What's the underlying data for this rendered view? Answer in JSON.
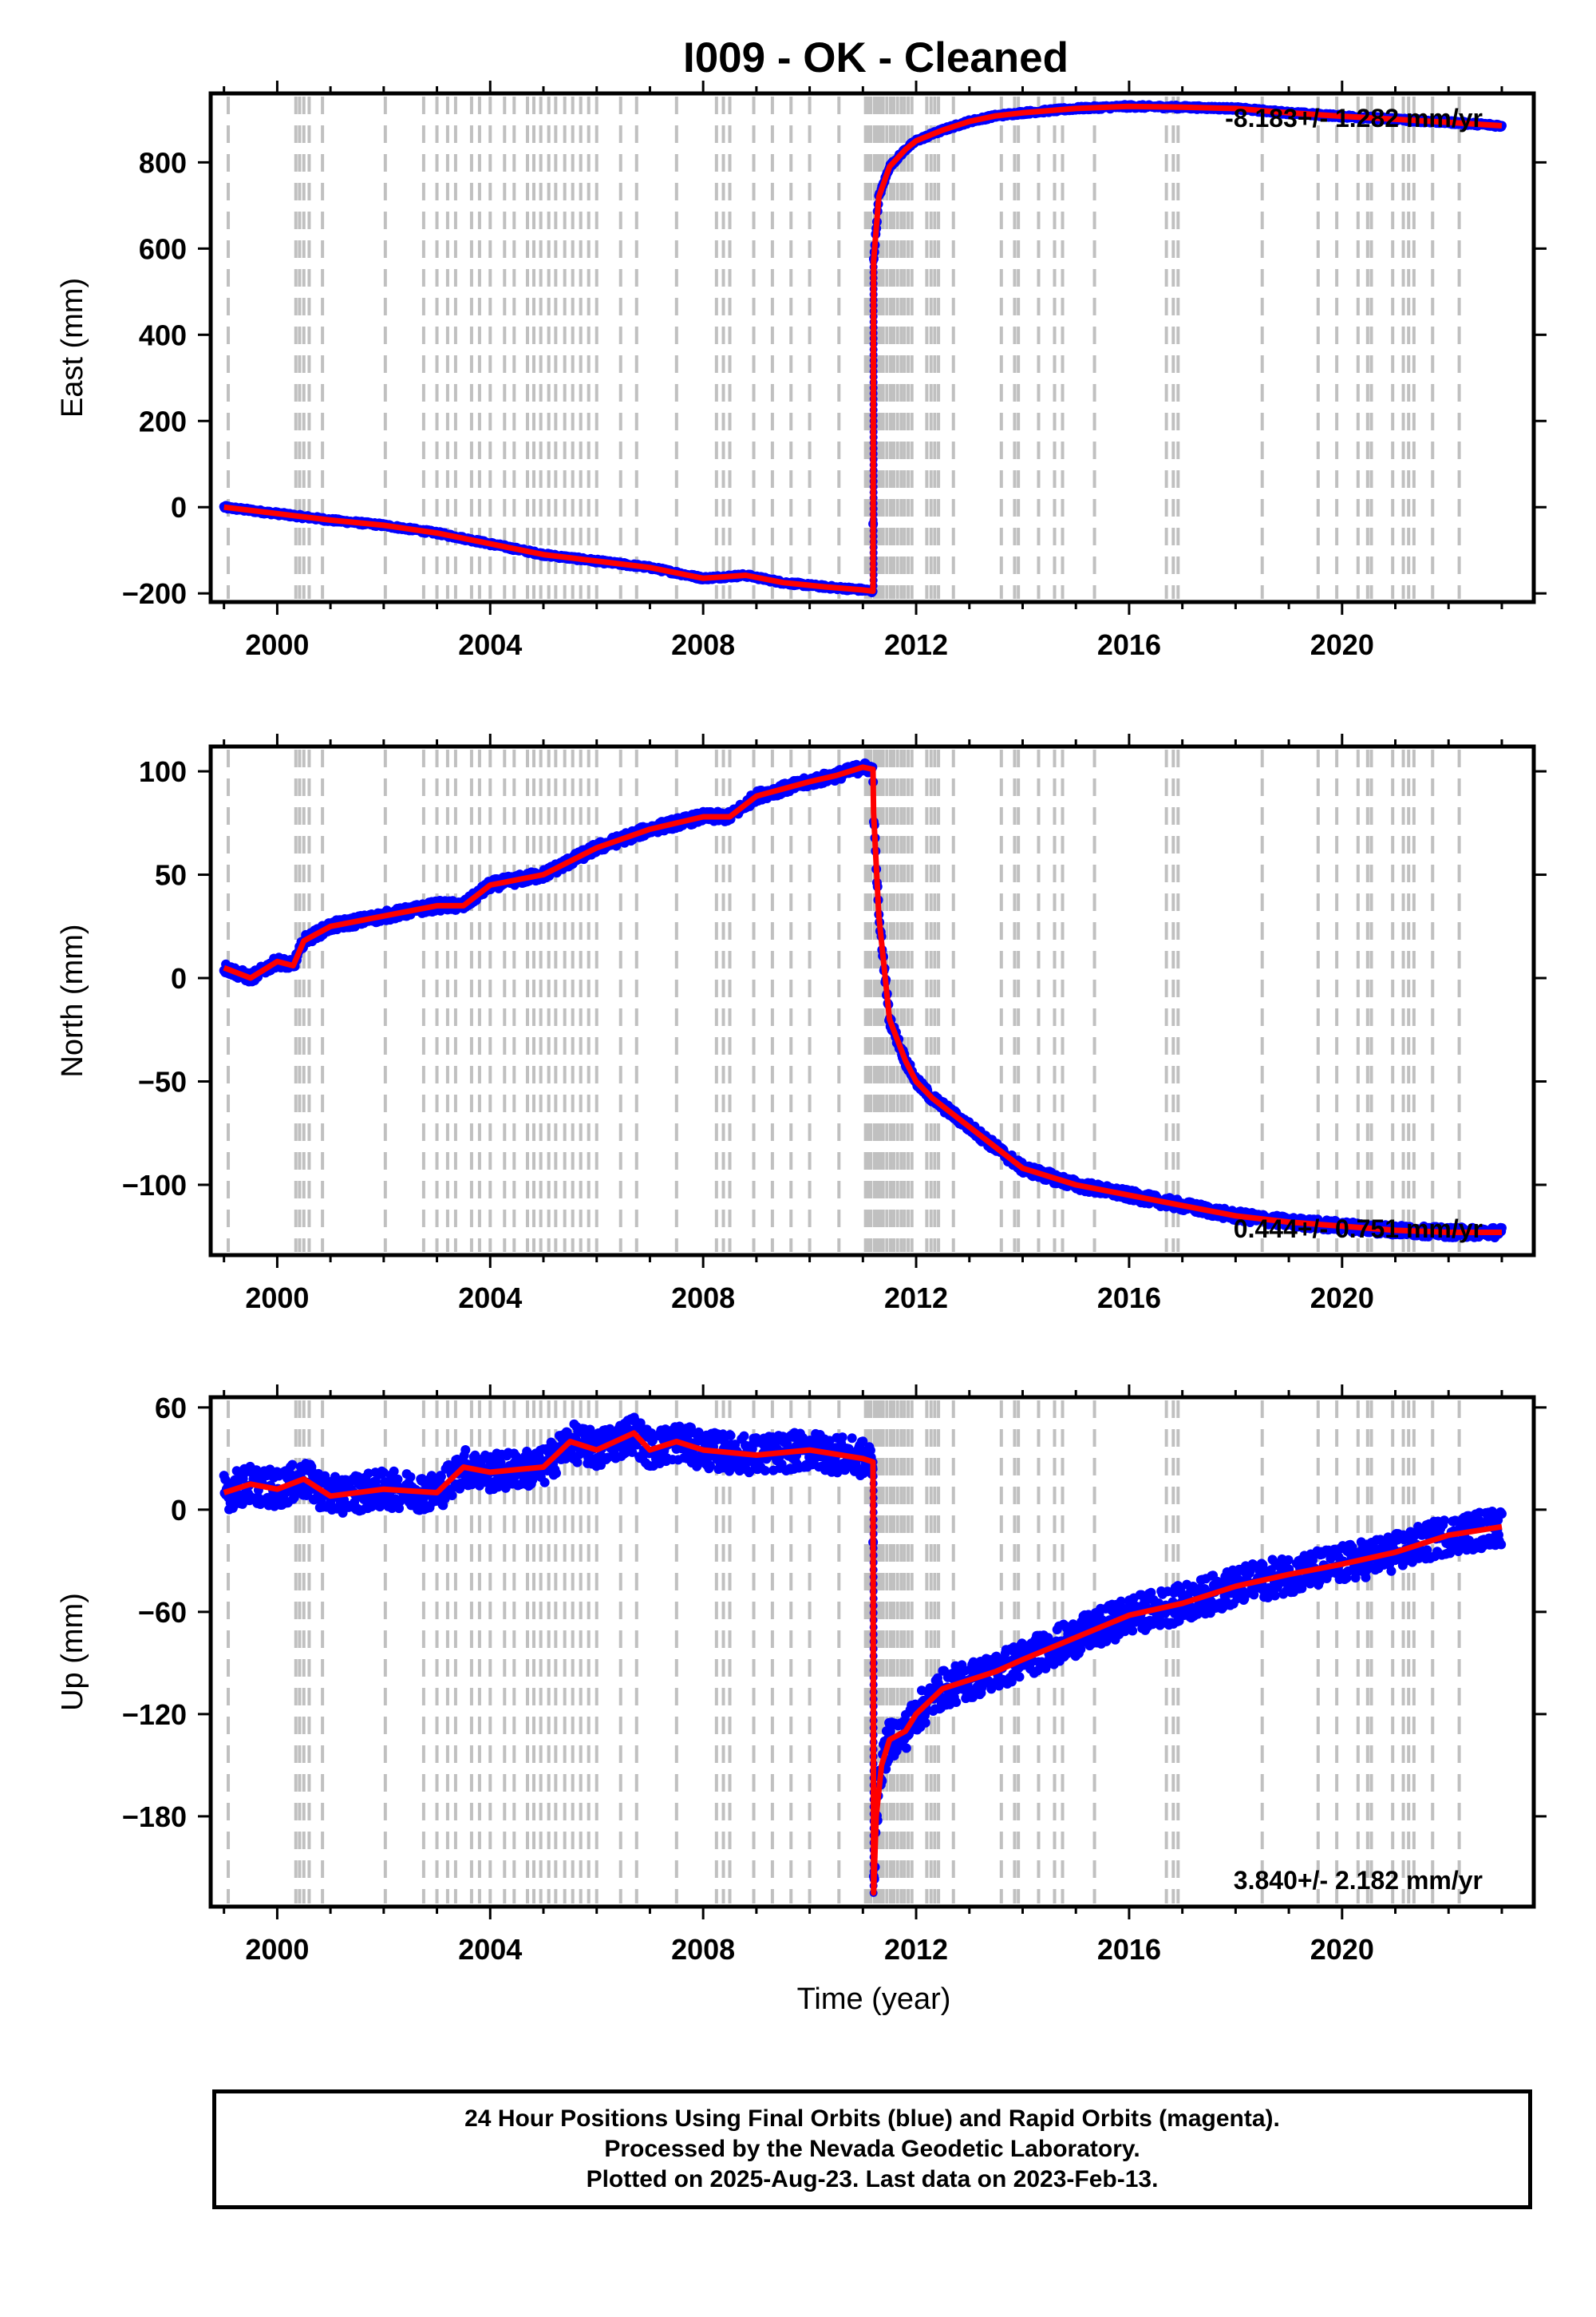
{
  "title": "I009  - OK - Cleaned",
  "footer": {
    "line1": "24 Hour Positions Using Final Orbits (blue) and Rapid Orbits (magenta).",
    "line2": "Processed by the Nevada Geodetic Laboratory.",
    "line3": "Plotted on 2025-Aug-23. Last data on 2023-Feb-13."
  },
  "colors": {
    "observed": "#0000ff",
    "model": "#ff0000",
    "steps": "#c0c0c0",
    "frame": "#000000"
  },
  "chart_data": [
    {
      "type": "scatter",
      "ylabel": "East (mm)",
      "xlabel": "",
      "xlim": [
        1998.75,
        2023.6
      ],
      "ylim": [
        -220,
        960
      ],
      "xticks": [
        2000,
        2004,
        2008,
        2012,
        2016,
        2020
      ],
      "yticks": [
        -200,
        0,
        200,
        400,
        600,
        800
      ],
      "rate_label": "-8.183+/- 1.282 mm/yr",
      "series": [
        {
          "x": [
            1999.0,
            2000.0,
            2001.0,
            2002.0,
            2003.0,
            2004.0,
            2005.0,
            2006.0,
            2007.0,
            2008.0,
            2008.8,
            2009.5,
            2010.3,
            2011.0,
            2011.19,
            2011.2,
            2011.3,
            2011.5,
            2011.8,
            2012.0,
            2012.5,
            2013.0,
            2013.5,
            2014.0,
            2015.0,
            2016.0,
            2017.0,
            2018.0,
            2019.0,
            2020.0,
            2021.0,
            2022.0,
            2023.0
          ],
          "values": [
            0,
            -15,
            -30,
            -42,
            -60,
            -85,
            -110,
            -125,
            -140,
            -165,
            -158,
            -175,
            -185,
            -192,
            -195,
            570,
            720,
            790,
            830,
            850,
            875,
            895,
            908,
            915,
            925,
            930,
            928,
            925,
            915,
            907,
            900,
            893,
            885
          ]
        }
      ]
    },
    {
      "type": "scatter",
      "ylabel": "North (mm)",
      "xlabel": "",
      "xlim": [
        1998.75,
        2023.6
      ],
      "ylim": [
        -134,
        112
      ],
      "xticks": [
        2000,
        2004,
        2008,
        2012,
        2016,
        2020
      ],
      "yticks": [
        -100,
        -50,
        0,
        50,
        100
      ],
      "rate_label": "0.444+/- 0.751 mm/yr",
      "series": [
        {
          "x": [
            1999.0,
            1999.5,
            2000.0,
            2000.3,
            2000.5,
            2001.0,
            2002.0,
            2003.0,
            2003.5,
            2004.0,
            2005.0,
            2006.0,
            2007.0,
            2008.0,
            2008.5,
            2009.0,
            2010.0,
            2010.5,
            2011.0,
            2011.19,
            2011.2,
            2011.3,
            2011.5,
            2011.8,
            2012.0,
            2012.3,
            2012.5,
            2013.0,
            2013.5,
            2014.0,
            2015.0,
            2016.0,
            2017.0,
            2018.0,
            2019.0,
            2020.0,
            2021.0,
            2022.0,
            2023.0
          ],
          "values": [
            5,
            0,
            8,
            6,
            18,
            25,
            30,
            35,
            35,
            45,
            50,
            63,
            72,
            78,
            78,
            88,
            95,
            98,
            102,
            101,
            80,
            30,
            -20,
            -40,
            -50,
            -58,
            -62,
            -72,
            -82,
            -92,
            -100,
            -105,
            -110,
            -115,
            -118,
            -120,
            -122,
            -123,
            -123
          ]
        }
      ]
    },
    {
      "type": "scatter",
      "ylabel": "Up (mm)",
      "xlabel": "Time (year)",
      "xlim": [
        1998.75,
        2023.6
      ],
      "ylim": [
        -233,
        66
      ],
      "xticks": [
        2000,
        2004,
        2008,
        2012,
        2016,
        2020
      ],
      "yticks": [
        -180,
        -120,
        -60,
        0,
        60
      ],
      "rate_label": "3.840+/- 2.182 mm/yr",
      "series": [
        {
          "x": [
            1999.0,
            1999.5,
            2000.0,
            2000.5,
            2001.0,
            2002.0,
            2003.0,
            2003.5,
            2004.0,
            2005.0,
            2005.5,
            2006.0,
            2006.7,
            2007.0,
            2007.5,
            2008.0,
            2009.0,
            2010.0,
            2011.0,
            2011.19,
            2011.2,
            2011.25,
            2011.35,
            2011.5,
            2011.8,
            2012.0,
            2012.5,
            2013.0,
            2013.5,
            2014.0,
            2015.0,
            2016.0,
            2017.0,
            2018.0,
            2019.0,
            2020.0,
            2021.0,
            2022.0,
            2023.0
          ],
          "values": [
            10,
            15,
            12,
            18,
            8,
            12,
            10,
            25,
            22,
            25,
            40,
            35,
            45,
            35,
            40,
            35,
            32,
            35,
            30,
            28,
            -225,
            -180,
            -150,
            -135,
            -130,
            -120,
            -105,
            -100,
            -95,
            -88,
            -75,
            -62,
            -55,
            -45,
            -38,
            -32,
            -25,
            -15,
            -10
          ]
        }
      ]
    }
  ],
  "step_years": [
    1999.08,
    2000.35,
    2000.42,
    2000.5,
    2000.6,
    2000.85,
    2002.03,
    2002.75,
    2003.0,
    2003.2,
    2003.35,
    2003.65,
    2003.8,
    2004.0,
    2004.27,
    2004.45,
    2004.7,
    2004.82,
    2004.95,
    2005.1,
    2005.23,
    2005.4,
    2005.55,
    2005.7,
    2005.85,
    2006.0,
    2006.45,
    2006.75,
    2007.5,
    2008.25,
    2008.38,
    2008.5,
    2008.95,
    2009.3,
    2009.65,
    2010.0,
    2010.55,
    2011.05,
    2011.1,
    2011.15,
    2011.22,
    2011.28,
    2011.33,
    2011.38,
    2011.45,
    2011.52,
    2011.58,
    2011.65,
    2011.72,
    2011.78,
    2011.85,
    2011.92,
    2012.2,
    2012.28,
    2012.35,
    2012.42,
    2012.7,
    2013.6,
    2013.85,
    2013.92,
    2014.3,
    2014.6,
    2014.75,
    2015.35,
    2016.7,
    2016.83,
    2016.92,
    2018.5,
    2019.55,
    2019.9,
    2020.3,
    2020.48,
    2020.55,
    2020.95,
    2021.15,
    2021.25,
    2021.35,
    2021.7,
    2022.2
  ]
}
